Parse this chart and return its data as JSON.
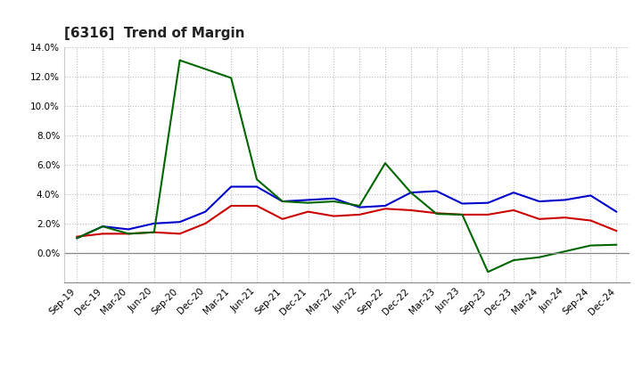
{
  "title": "[6316]  Trend of Margin",
  "x_labels": [
    "Sep-19",
    "Dec-19",
    "Mar-20",
    "Jun-20",
    "Sep-20",
    "Dec-20",
    "Mar-21",
    "Jun-21",
    "Sep-21",
    "Dec-21",
    "Mar-22",
    "Jun-22",
    "Sep-22",
    "Dec-22",
    "Mar-23",
    "Jun-23",
    "Sep-23",
    "Dec-23",
    "Mar-24",
    "Jun-24",
    "Sep-24",
    "Dec-24"
  ],
  "ordinary_income": [
    1.0,
    1.8,
    1.6,
    2.0,
    2.1,
    2.8,
    4.5,
    4.5,
    3.5,
    3.6,
    3.7,
    3.1,
    3.2,
    4.1,
    4.2,
    3.35,
    3.4,
    4.1,
    3.5,
    3.6,
    3.9,
    2.8
  ],
  "net_income": [
    1.1,
    1.3,
    1.3,
    1.4,
    1.3,
    2.0,
    3.2,
    3.2,
    2.3,
    2.8,
    2.5,
    2.6,
    3.0,
    2.9,
    2.7,
    2.6,
    2.6,
    2.9,
    2.3,
    2.4,
    2.2,
    1.5
  ],
  "operating_cashflow": [
    1.0,
    1.8,
    1.3,
    1.4,
    13.1,
    12.5,
    11.9,
    5.0,
    3.5,
    3.4,
    3.5,
    3.2,
    6.1,
    4.1,
    2.65,
    2.6,
    -1.3,
    -0.5,
    -0.3,
    0.1,
    0.5,
    0.55
  ],
  "ylim": [
    -2.0,
    14.0
  ],
  "yticks": [
    0.0,
    2.0,
    4.0,
    6.0,
    8.0,
    10.0,
    12.0,
    14.0
  ],
  "line_colors": {
    "ordinary_income": "#0000cc",
    "net_income": "#cc0000",
    "operating_cashflow": "#006600"
  },
  "line_widths": {
    "ordinary_income": 1.5,
    "net_income": 1.5,
    "operating_cashflow": 1.5
  },
  "background_color": "#ffffff",
  "grid_color": "#bbbbbb",
  "title_fontsize": 11,
  "tick_fontsize": 7.5,
  "legend_fontsize": 8.5
}
